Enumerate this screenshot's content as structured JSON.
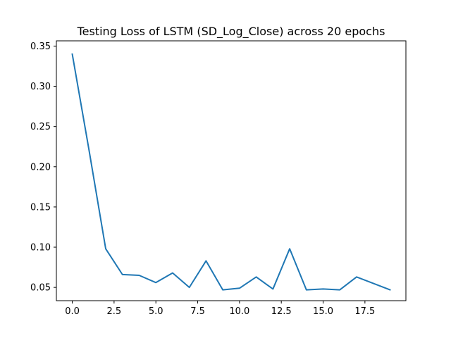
{
  "chart_data": {
    "type": "line",
    "title": "Testing Loss of LSTM (SD_Log_Close) across 20 epochs",
    "xlabel": "",
    "ylabel": "",
    "xlim": [
      -0.95,
      19.95
    ],
    "ylim": [
      0.0335,
      0.3565
    ],
    "grid": false,
    "legend": "none",
    "x_ticks": [
      0.0,
      2.5,
      5.0,
      7.5,
      10.0,
      12.5,
      15.0,
      17.5
    ],
    "x_tick_labels": [
      "0.0",
      "2.5",
      "5.0",
      "7.5",
      "10.0",
      "12.5",
      "15.0",
      "17.5"
    ],
    "y_ticks": [
      0.05,
      0.1,
      0.15,
      0.2,
      0.25,
      0.3,
      0.35
    ],
    "y_tick_labels": [
      "0.05",
      "0.10",
      "0.15",
      "0.20",
      "0.25",
      "0.30",
      "0.35"
    ],
    "series": [
      {
        "color": "#1f77b4",
        "x": [
          0,
          1,
          2,
          3,
          4,
          5,
          6,
          7,
          8,
          9,
          10,
          11,
          12,
          13,
          14,
          15,
          16,
          17,
          18,
          19
        ],
        "y": [
          0.34,
          0.221,
          0.098,
          0.066,
          0.065,
          0.056,
          0.068,
          0.05,
          0.083,
          0.047,
          0.049,
          0.063,
          0.048,
          0.098,
          0.047,
          0.048,
          0.047,
          0.063,
          0.055,
          0.047
        ]
      }
    ]
  }
}
